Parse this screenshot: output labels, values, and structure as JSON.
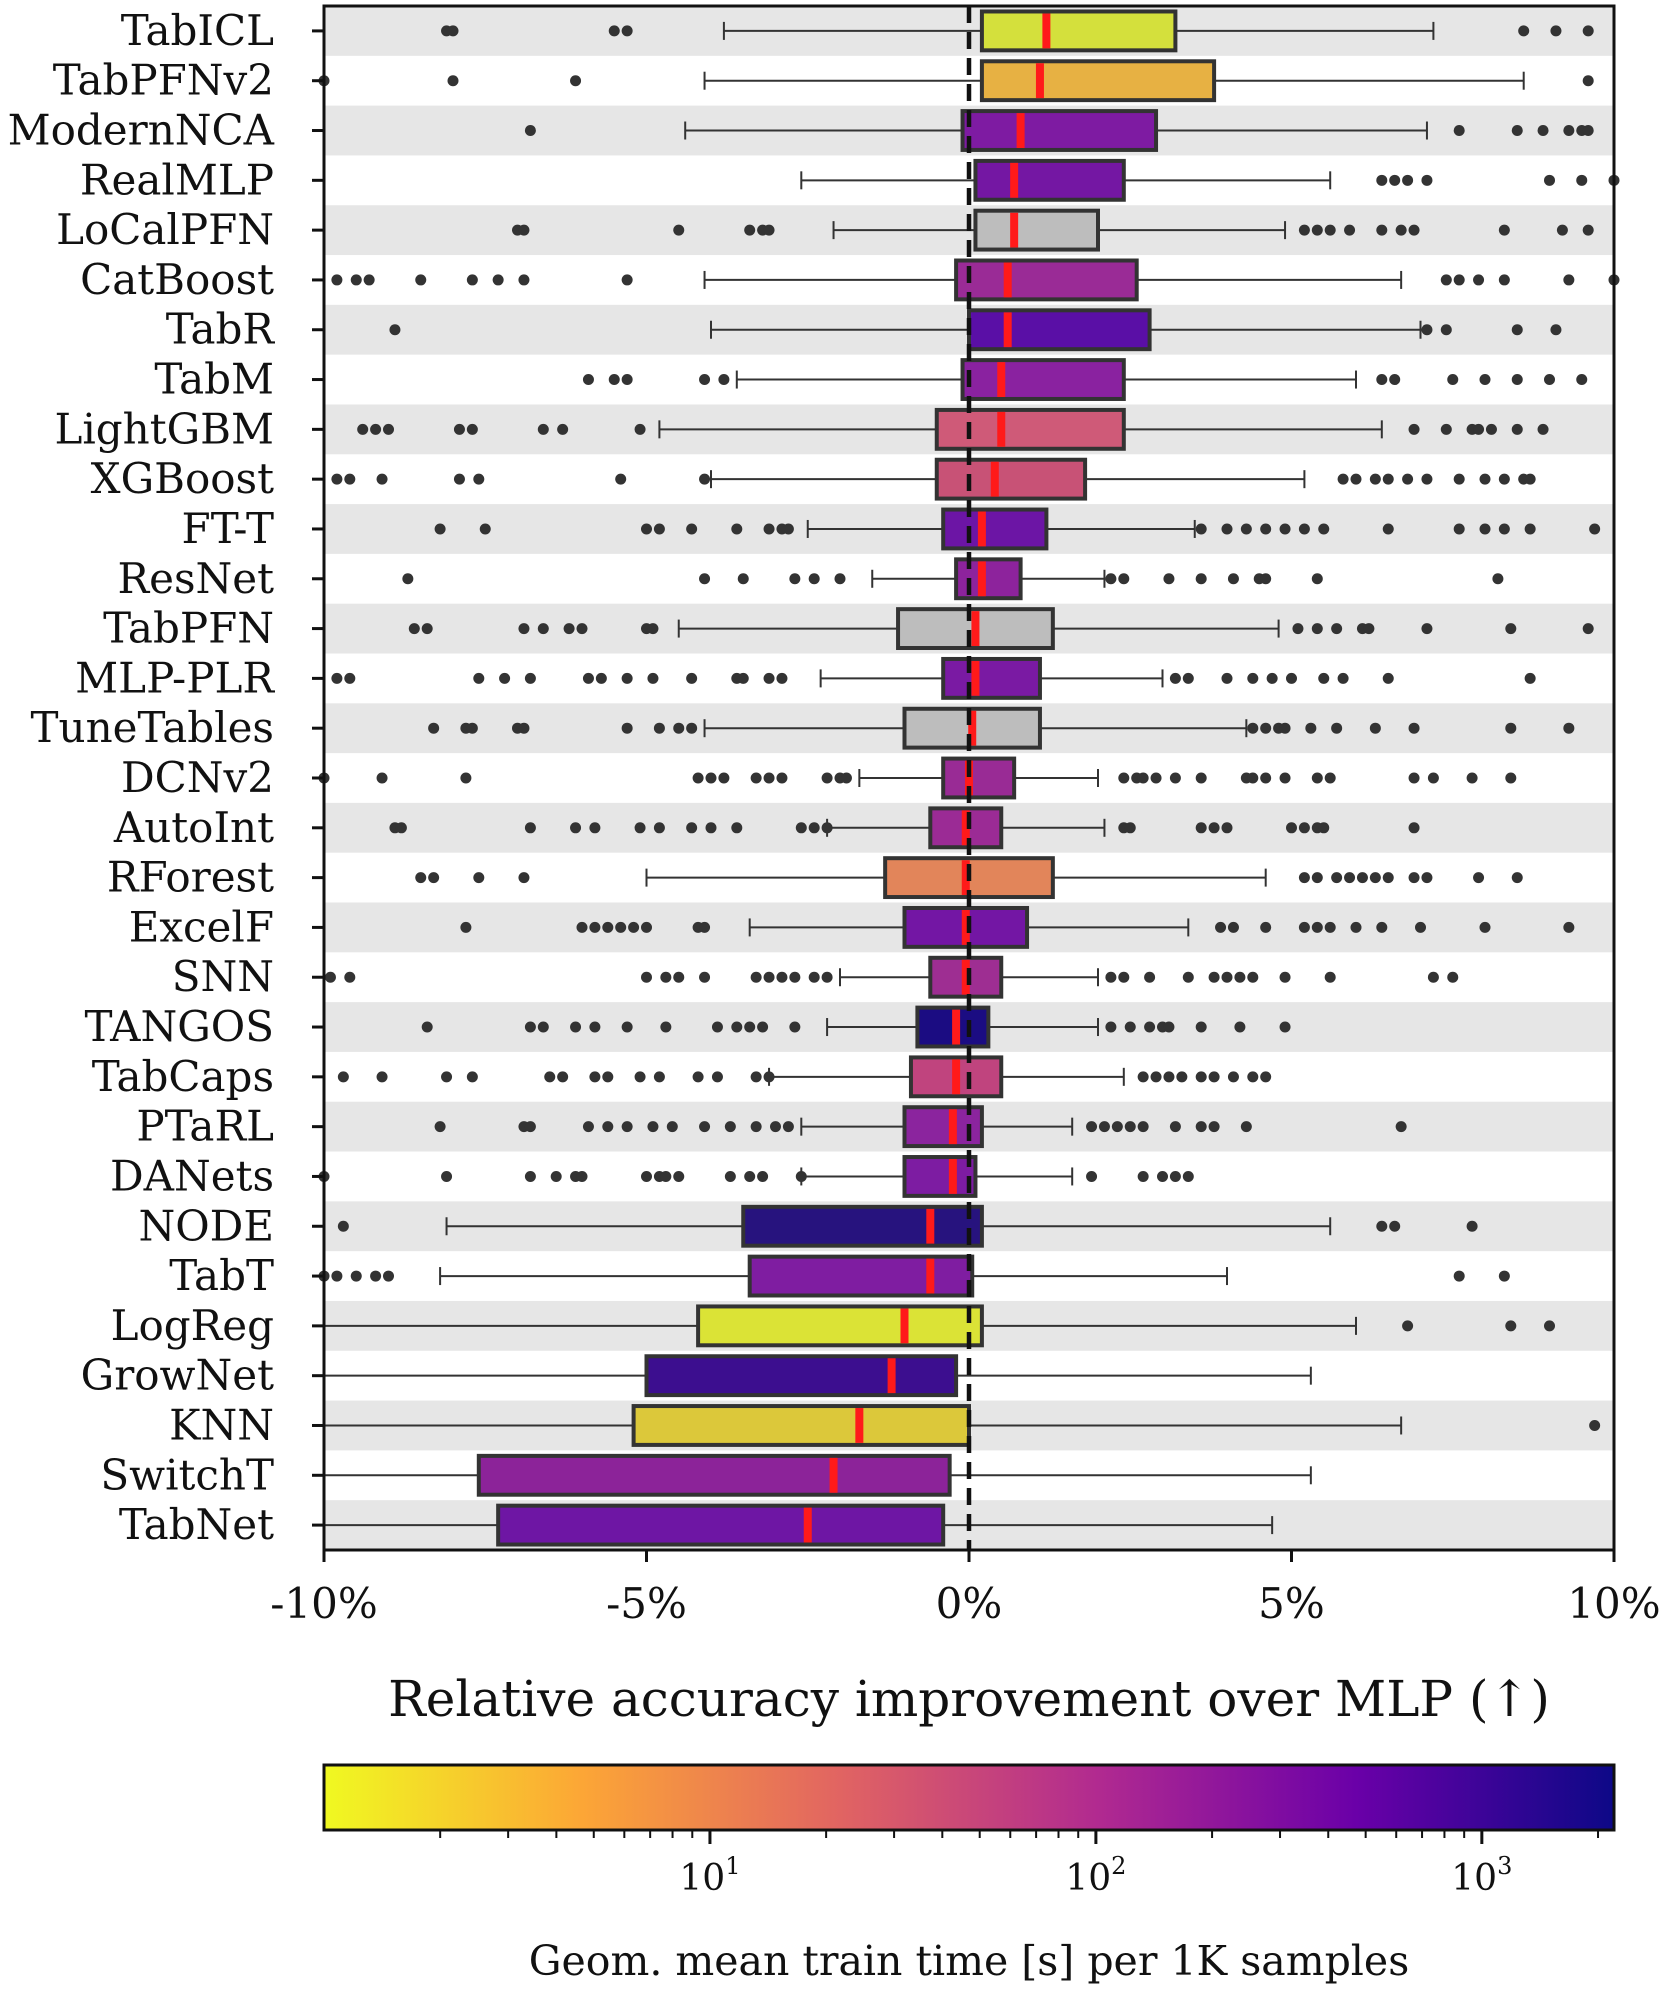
{
  "chart_data": {
    "type": "boxplot",
    "xlabel": "Relative accuracy improvement over MLP (↑)",
    "xlim": [
      -10,
      10
    ],
    "xticks": [
      -10,
      -5,
      0,
      5,
      10
    ],
    "xtick_labels": [
      "-10%",
      "-5%",
      "0%",
      "5%",
      "10%"
    ],
    "reference_line_x": 0,
    "colorbar": {
      "label": "Geom. mean train time [s] per 1K samples",
      "scale": "log",
      "range": [
        1,
        2200
      ],
      "major_ticks": [
        10,
        100,
        1000
      ],
      "major_tick_labels": [
        "10^1",
        "10^2",
        "10^3"
      ],
      "colormap": "plasma",
      "stops": [
        "#f0f921",
        "#fca636",
        "#e16462",
        "#b12a90",
        "#6a00a8",
        "#0d0887"
      ]
    },
    "series": [
      {
        "name": "TabICL",
        "whislo": -3.8,
        "q1": 0.2,
        "med": 1.2,
        "q3": 3.2,
        "whishi": 7.2,
        "color": "#d4e03c",
        "fliers": [
          -8.1,
          -8,
          -5.5,
          -5.3,
          8.6,
          9.1,
          9.6
        ]
      },
      {
        "name": "TabPFNv2",
        "whislo": -4.1,
        "q1": 0.2,
        "med": 1.1,
        "q3": 3.8,
        "whishi": 8.6,
        "color": "#e7b143",
        "fliers": [
          -10,
          -8,
          -6.1,
          9.6
        ]
      },
      {
        "name": "ModernNCA",
        "whislo": -4.4,
        "q1": -0.1,
        "med": 0.8,
        "q3": 2.9,
        "whishi": 7.1,
        "color": "#7e1ba2",
        "fliers": [
          -6.8,
          7.6,
          8.5,
          8.9,
          9.3,
          9.5,
          9.6
        ]
      },
      {
        "name": "RealMLP",
        "whislo": -2.6,
        "q1": 0.1,
        "med": 0.7,
        "q3": 2.4,
        "whishi": 5.6,
        "color": "#7417a3",
        "fliers": [
          6.4,
          6.6,
          6.8,
          7.1,
          9,
          9.5,
          10
        ]
      },
      {
        "name": "LoCalPFN",
        "whislo": -2.1,
        "q1": 0.1,
        "med": 0.7,
        "q3": 2.0,
        "whishi": 4.9,
        "color": "#bdbdbd",
        "fliers": [
          -7,
          -6.9,
          -4.5,
          -3.4,
          -3.2,
          -3.1,
          5.2,
          5.4,
          5.6,
          5.9,
          6.4,
          6.7,
          6.9,
          8.3,
          9.2,
          9.6
        ]
      },
      {
        "name": "CatBoost",
        "whislo": -4.1,
        "q1": -0.2,
        "med": 0.6,
        "q3": 2.6,
        "whishi": 6.7,
        "color": "#9a2b96",
        "fliers": [
          -9.8,
          -9.5,
          -9.3,
          -8.5,
          -7.7,
          -7.3,
          -6.9,
          -5.3,
          7.4,
          7.6,
          7.9,
          8.3,
          9.3,
          10
        ]
      },
      {
        "name": "TabR",
        "whislo": -4,
        "q1": 0,
        "med": 0.6,
        "q3": 2.8,
        "whishi": 7.0,
        "color": "#5a0fa6",
        "fliers": [
          -8.9,
          7.1,
          7.4,
          8.5,
          9.1
        ]
      },
      {
        "name": "TabM",
        "whislo": -3.6,
        "q1": -0.1,
        "med": 0.5,
        "q3": 2.4,
        "whishi": 6.0,
        "color": "#8a22a0",
        "fliers": [
          -5.9,
          -5.5,
          -5.3,
          -4.1,
          -3.8,
          6.4,
          6.6,
          7.5,
          8,
          8.5,
          9,
          9.5
        ]
      },
      {
        "name": "LightGBM",
        "whislo": -4.8,
        "q1": -0.5,
        "med": 0.5,
        "q3": 2.4,
        "whishi": 6.4,
        "color": "#cf5a78",
        "fliers": [
          -9.4,
          -9.2,
          -9,
          -7.9,
          -7.7,
          -6.6,
          -6.3,
          -5.1,
          6.9,
          7.4,
          7.8,
          7.9,
          8.1,
          8.5,
          8.9
        ]
      },
      {
        "name": "XGBoost",
        "whislo": -4,
        "q1": -0.5,
        "med": 0.4,
        "q3": 1.8,
        "whishi": 5.2,
        "color": "#c85276",
        "fliers": [
          -9.8,
          -9.6,
          -9.1,
          -7.9,
          -7.6,
          -5.4,
          -4.1,
          5.8,
          6,
          6.3,
          6.5,
          6.8,
          7.1,
          7.6,
          8,
          8.3,
          8.6,
          8.7
        ]
      },
      {
        "name": "FT-T",
        "whislo": -2.5,
        "q1": -0.4,
        "med": 0.2,
        "q3": 1.2,
        "whishi": 3.5,
        "color": "#6c15a5",
        "fliers": [
          -8.2,
          -7.5,
          -5,
          -4.8,
          -4.3,
          -3.6,
          -3.1,
          -2.9,
          -2.8,
          3.6,
          4,
          4.3,
          4.6,
          4.9,
          5.2,
          5.5,
          6.5,
          7.6,
          8,
          8.3,
          8.7,
          9.7
        ]
      },
      {
        "name": "ResNet",
        "whislo": -1.5,
        "q1": -0.2,
        "med": 0.2,
        "q3": 0.8,
        "whishi": 2.1,
        "color": "#8d239c",
        "fliers": [
          -8.7,
          -4.1,
          -3.5,
          -2.7,
          -2.4,
          -2,
          2.2,
          2.4,
          3.1,
          3.6,
          4.1,
          4.5,
          4.6,
          5.4,
          8.2
        ]
      },
      {
        "name": "TabPFN",
        "whislo": -4.5,
        "q1": -1.1,
        "med": 0.1,
        "q3": 1.3,
        "whishi": 4.8,
        "color": "#bdbdbd",
        "fliers": [
          -8.6,
          -8.4,
          -6.9,
          -6.6,
          -6.2,
          -6,
          -5,
          -4.9,
          5.1,
          5.4,
          5.7,
          6.1,
          6.2,
          7.1,
          8.4,
          9.6
        ]
      },
      {
        "name": "MLP-PLR",
        "whislo": -2.3,
        "q1": -0.4,
        "med": 0.1,
        "q3": 1.1,
        "whishi": 3.0,
        "color": "#7a1aa3",
        "fliers": [
          -9.8,
          -9.6,
          -7.6,
          -7.2,
          -6.8,
          -5.9,
          -5.7,
          -5.3,
          -4.9,
          -4.3,
          -3.6,
          -3.5,
          -3.1,
          -2.9,
          3.2,
          3.4,
          4,
          4.4,
          4.7,
          5,
          5.5,
          5.8,
          6.5,
          8.7
        ]
      },
      {
        "name": "TuneTables",
        "whislo": -4.1,
        "q1": -1,
        "med": 0.05,
        "q3": 1.1,
        "whishi": 4.3,
        "color": "#bdbdbd",
        "fliers": [
          -8.3,
          -7.8,
          -7.7,
          -7,
          -6.9,
          -5.3,
          -4.8,
          -4.5,
          -4.3,
          4.4,
          4.6,
          4.8,
          4.9,
          5.3,
          5.7,
          6.3,
          6.9,
          8.4,
          9.3
        ]
      },
      {
        "name": "DCNv2",
        "whislo": -1.7,
        "q1": -0.4,
        "med": 0,
        "q3": 0.7,
        "whishi": 2.0,
        "color": "#992b95",
        "fliers": [
          -10,
          -9.1,
          -7.8,
          -4.2,
          -4,
          -3.8,
          -3.3,
          -3.1,
          -2.9,
          -2.2,
          -2,
          -1.9,
          2.4,
          2.6,
          2.7,
          2.9,
          3.2,
          3.6,
          4.3,
          4.4,
          4.6,
          4.9,
          5.4,
          5.6,
          6.9,
          7.2,
          7.8,
          8.4
        ]
      },
      {
        "name": "AutoInt",
        "whislo": -2.2,
        "q1": -0.6,
        "med": -0.05,
        "q3": 0.5,
        "whishi": 2.1,
        "color": "#9b2b95",
        "fliers": [
          -8.9,
          -8.8,
          -6.8,
          -6.1,
          -5.8,
          -5.1,
          -4.8,
          -4.3,
          -4,
          -3.6,
          -2.6,
          -2.4,
          -2.2,
          2.4,
          2.5,
          3.6,
          3.8,
          4,
          5,
          5.2,
          5.4,
          5.5,
          6.9
        ]
      },
      {
        "name": "RForest",
        "whislo": -5,
        "q1": -1.3,
        "med": -0.05,
        "q3": 1.3,
        "whishi": 4.6,
        "color": "#e2855a",
        "fliers": [
          -8.5,
          -8.3,
          -7.6,
          -6.9,
          5.2,
          5.4,
          5.7,
          5.9,
          6.1,
          6.3,
          6.5,
          6.9,
          7.1,
          7.9,
          8.5
        ]
      },
      {
        "name": "ExcelF",
        "whislo": -3.4,
        "q1": -1,
        "med": -0.05,
        "q3": 0.9,
        "whishi": 3.4,
        "color": "#7316a4",
        "fliers": [
          -7.8,
          -6,
          -5.8,
          -5.6,
          -5.4,
          -5.2,
          -5,
          -4.2,
          -4.1,
          3.9,
          4.1,
          4.6,
          5.2,
          5.4,
          5.6,
          6,
          6.4,
          7,
          8,
          9.3
        ]
      },
      {
        "name": "SNN",
        "whislo": -2,
        "q1": -0.6,
        "med": -0.05,
        "q3": 0.5,
        "whishi": 2.0,
        "color": "#9e2e92",
        "fliers": [
          -9.9,
          -9.6,
          -5,
          -4.7,
          -4.5,
          -4.1,
          -3.3,
          -3.1,
          -2.9,
          -2.7,
          -2.4,
          -2.2,
          2.2,
          2.4,
          2.8,
          3.4,
          3.8,
          4,
          4.2,
          4.4,
          4.9,
          5.6,
          7.2,
          7.5
        ]
      },
      {
        "name": "TANGOS",
        "whislo": -2.2,
        "q1": -0.8,
        "med": -0.2,
        "q3": 0.3,
        "whishi": 2.0,
        "color": "#1b0c82",
        "fliers": [
          -8.4,
          -6.8,
          -6.6,
          -6.1,
          -5.8,
          -5.3,
          -4.7,
          -3.9,
          -3.6,
          -3.4,
          -3.2,
          -2.7,
          2.2,
          2.5,
          2.8,
          3,
          3.1,
          3.6,
          4.2,
          4.9
        ]
      },
      {
        "name": "TabCaps",
        "whislo": -3.1,
        "q1": -0.9,
        "med": -0.2,
        "q3": 0.5,
        "whishi": 2.4,
        "color": "#c0447e",
        "fliers": [
          -9.7,
          -9.1,
          -8.1,
          -7.7,
          -6.5,
          -6.3,
          -5.8,
          -5.6,
          -5.1,
          -4.8,
          -4.2,
          -3.9,
          -3.3,
          -3.1,
          2.7,
          2.9,
          3.1,
          3.3,
          3.6,
          3.8,
          4.1,
          4.4,
          4.6
        ]
      },
      {
        "name": "PTaRL",
        "whislo": -2.6,
        "q1": -1,
        "med": -0.25,
        "q3": 0.2,
        "whishi": 1.6,
        "color": "#8b249e",
        "fliers": [
          -8.2,
          -6.9,
          -6.8,
          -5.9,
          -5.6,
          -5.3,
          -4.9,
          -4.6,
          -4.1,
          -3.7,
          -3.3,
          -3,
          -2.8,
          1.9,
          2.1,
          2.3,
          2.5,
          2.7,
          3.2,
          3.6,
          3.8,
          4.3,
          6.7
        ]
      },
      {
        "name": "DANets",
        "whislo": -2.6,
        "q1": -1,
        "med": -0.25,
        "q3": 0.1,
        "whishi": 1.6,
        "color": "#7d1ca2",
        "fliers": [
          -10,
          -8.1,
          -6.8,
          -6.4,
          -6.1,
          -6,
          -5,
          -4.8,
          -4.7,
          -4.5,
          -3.7,
          -3.4,
          -3.2,
          -2.6,
          1.9,
          2.7,
          3,
          3.2,
          3.4
        ]
      },
      {
        "name": "NODE",
        "whislo": -8.1,
        "q1": -3.5,
        "med": -0.6,
        "q3": 0.2,
        "whishi": 5.6,
        "color": "#27137e",
        "fliers": [
          -9.7,
          6.4,
          6.6,
          7.8
        ]
      },
      {
        "name": "TabT",
        "whislo": -8.2,
        "q1": -3.4,
        "med": -0.6,
        "q3": 0.05,
        "whishi": 4.0,
        "color": "#7f1da1",
        "fliers": [
          -10,
          -9.8,
          -9.5,
          -9.2,
          -9,
          7.6,
          8.3
        ]
      },
      {
        "name": "LogReg",
        "whislo": -10,
        "q1": -4.2,
        "med": -1,
        "q3": 0.2,
        "whishi": 6.0,
        "color": "#dbe336",
        "fliers": [
          6.8,
          8.4,
          9
        ]
      },
      {
        "name": "GrowNet",
        "whislo": -10,
        "q1": -5,
        "med": -1.2,
        "q3": -0.2,
        "whishi": 5.3,
        "color": "#3c0e8f",
        "fliers": []
      },
      {
        "name": "KNN",
        "whislo": -10,
        "q1": -5.2,
        "med": -1.7,
        "q3": 0,
        "whishi": 6.7,
        "color": "#dcc83a",
        "fliers": [
          9.7
        ]
      },
      {
        "name": "SwitchT",
        "whislo": -10,
        "q1": -7.6,
        "med": -2.1,
        "q3": -0.3,
        "whishi": 5.3,
        "color": "#8c2399",
        "fliers": []
      },
      {
        "name": "TabNet",
        "whislo": -10,
        "q1": -7.3,
        "med": -2.5,
        "q3": -0.4,
        "whishi": 4.7,
        "color": "#6e16a4",
        "fliers": []
      }
    ]
  }
}
